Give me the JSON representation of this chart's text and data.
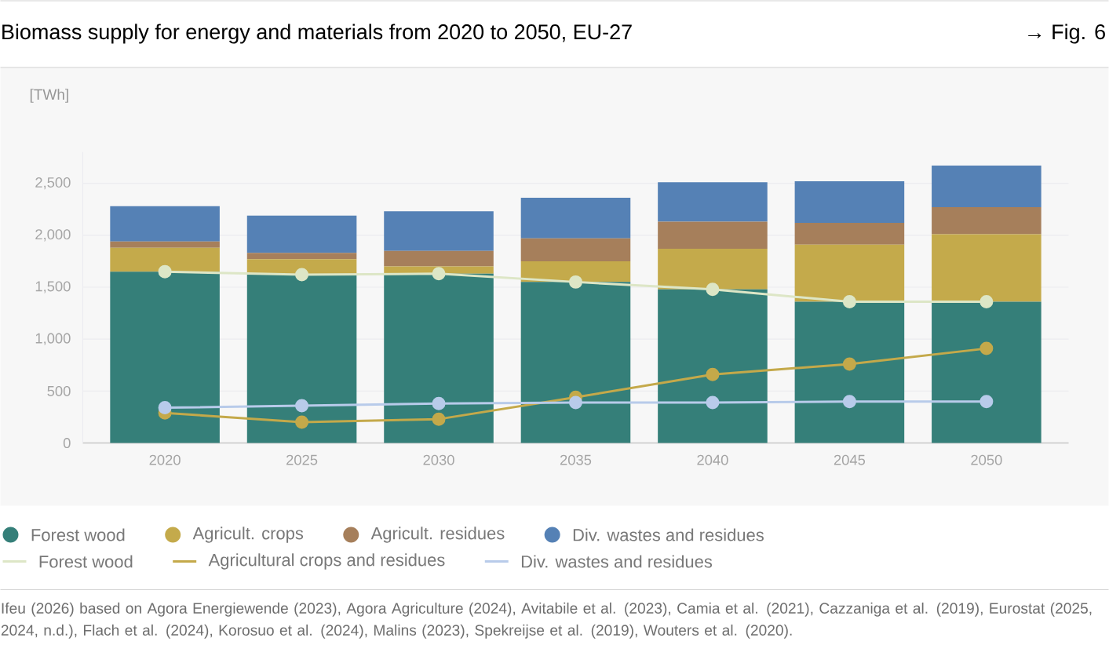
{
  "chart_data": {
    "type": "bar",
    "title": "Biomass supply for energy and materials from 2020 to 2050, EU-27",
    "ylabel": "[TWh]",
    "annotations": [
      "→ Fig. 6",
      "Ifeu (2026) based on Agora Energiewende (2023), Agora Agriculture (2024), Avitabile et al. (2023), Camia et al. (2021), Cazzaniga et al. (2019), Eurostat (2025, 2024, n.d.), Flach et al. (2024), Korosuo et al. (2024), Malins (2023), Spekreijse et al. (2019), Wouters et al. (2020)."
    ],
    "categories": [
      "2020",
      "2025",
      "2030",
      "2035",
      "2040",
      "2045",
      "2050"
    ],
    "stacked": true,
    "series": [
      {
        "name": "Forest wood",
        "color": "#357f79",
        "values": [
          1650,
          1620,
          1630,
          1550,
          1480,
          1360,
          1360
        ]
      },
      {
        "name": "Agricult. crops",
        "color": "#c4aa4b",
        "values": [
          230,
          150,
          70,
          200,
          390,
          550,
          650
        ]
      },
      {
        "name": "Agricult. residues",
        "color": "#a67f5b",
        "values": [
          60,
          60,
          150,
          220,
          260,
          210,
          260
        ]
      },
      {
        "name": "Div. wastes and residues",
        "color": "#5581b5",
        "values": [
          340,
          360,
          380,
          390,
          380,
          400,
          400
        ]
      },
      {
        "name": "Forest wood",
        "type": "line",
        "marker": "circle",
        "color": "#dde6c6",
        "values": [
          1650,
          1620,
          1630,
          1550,
          1480,
          1360,
          1360
        ]
      },
      {
        "name": "Agricultural crops and residues",
        "type": "line",
        "marker": "circle",
        "color": "#c4a94a",
        "values": [
          290,
          200,
          230,
          440,
          660,
          760,
          910
        ]
      },
      {
        "name": "Div. wastes and residues",
        "type": "line",
        "marker": "circle",
        "color": "#b8cbea",
        "values": [
          340,
          360,
          380,
          390,
          390,
          400,
          400
        ]
      }
    ],
    "ylim": [
      0,
      2800
    ],
    "yticks": [
      0,
      500,
      {
        "value": 1000,
        "label": "1,000"
      },
      {
        "value": 1500,
        "label": "1,500"
      },
      {
        "value": 2000,
        "label": "2,000"
      },
      {
        "value": 2500,
        "label": "2,500"
      }
    ],
    "grid": "y",
    "legend": "bottom"
  }
}
